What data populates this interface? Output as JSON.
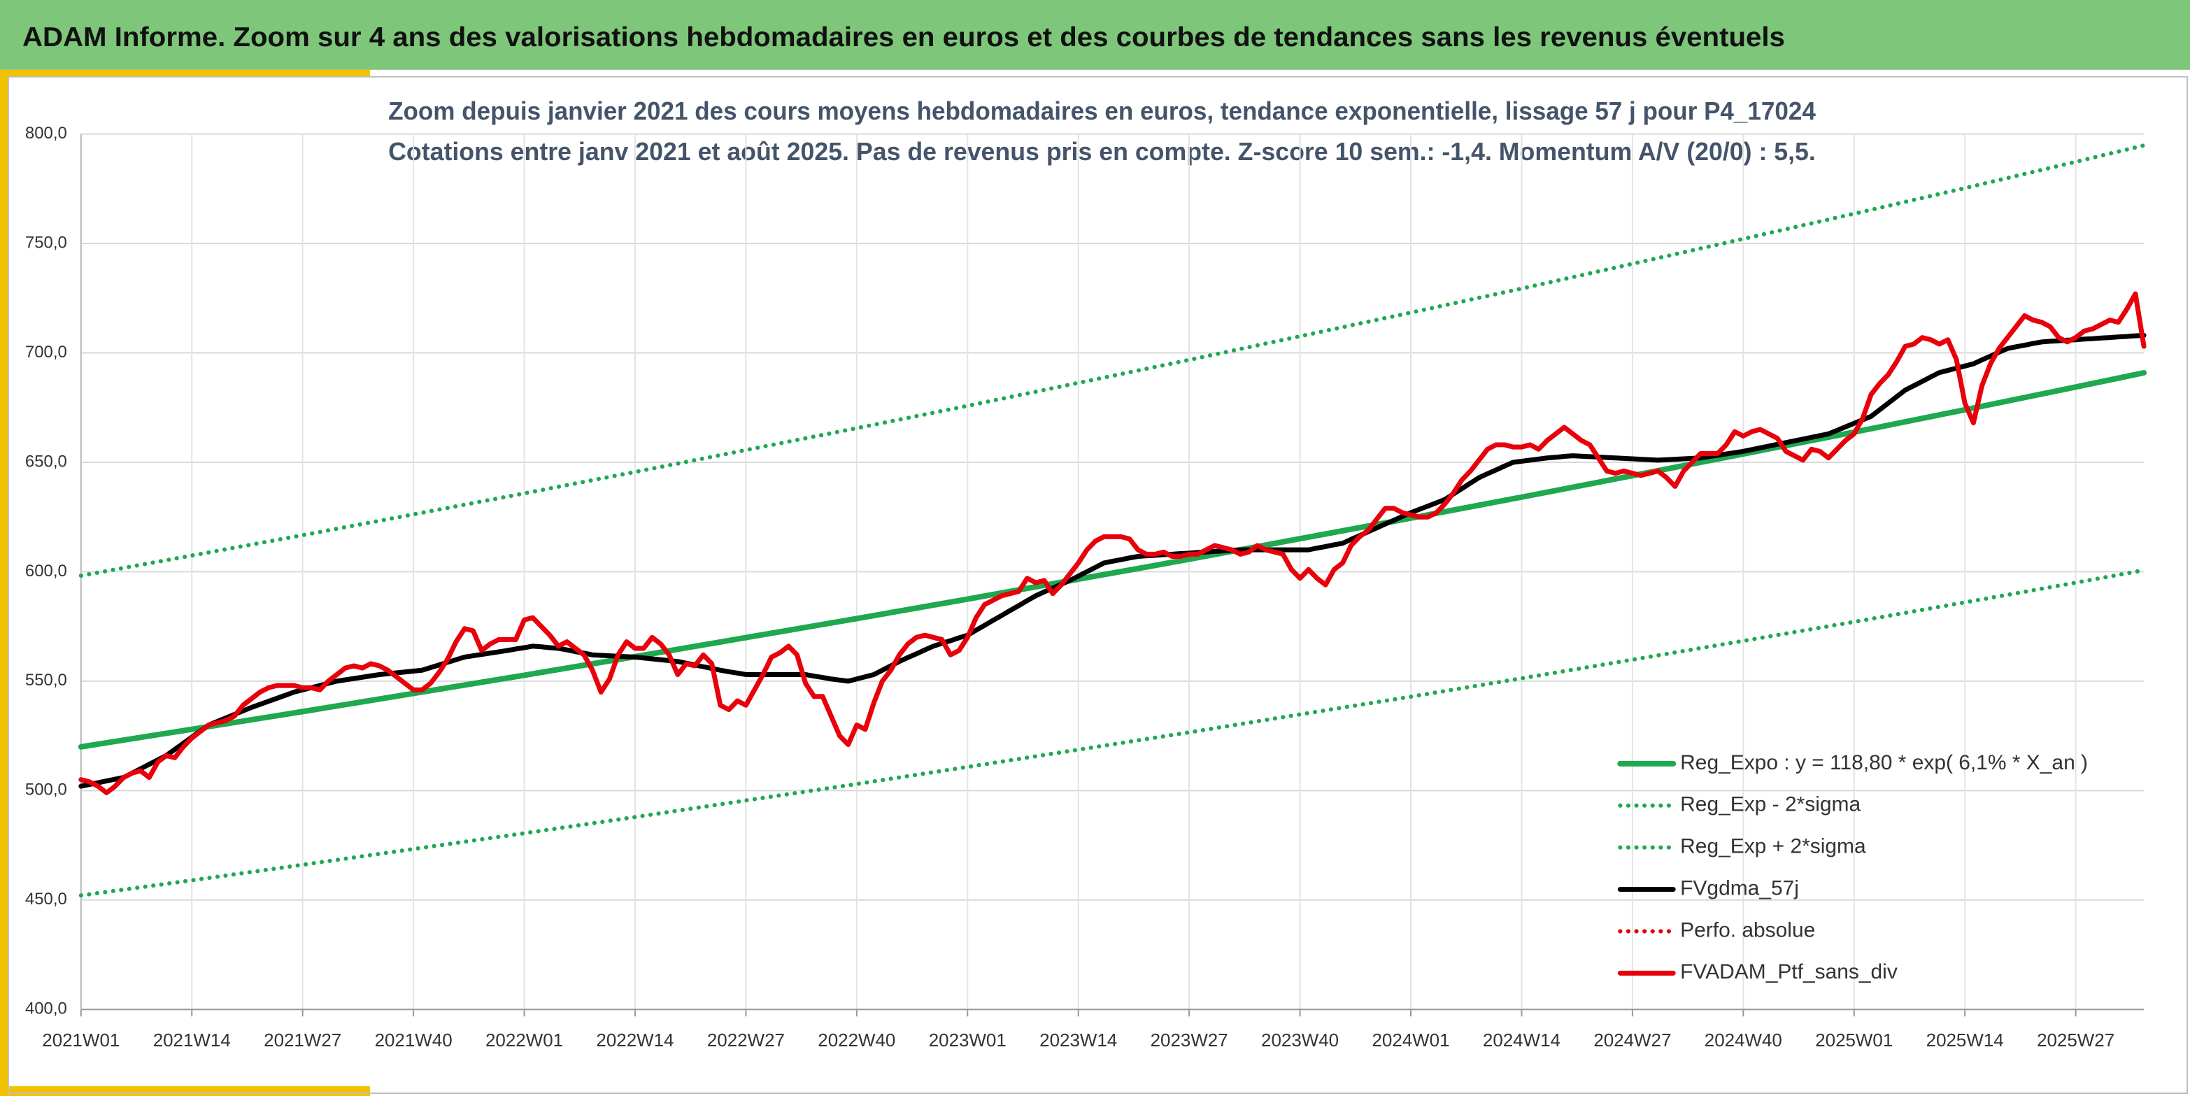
{
  "chart_data": {
    "type": "line",
    "title": "ADAM Informe. Zoom sur 4 ans des valorisations hebdomadaires en euros et des courbes de tendances sans les revenus éventuels",
    "subtitle": [
      "Zoom depuis janvier 2021 des cours moyens hebdomadaires en euros, tendance exponentielle, lissage 57 j pour P4_17024",
      "Cotations entre janv 2021 et août 2025. Pas de revenus pris en compte. Z-score 10 sem.: -1,4. Momentum A/V (20/0) : 5,5."
    ],
    "grid": true,
    "legend": "lower right",
    "xlim": [
      0,
      242
    ],
    "xticks": [
      {
        "value": 0,
        "label": "2021W01"
      },
      {
        "value": 13,
        "label": "2021W14"
      },
      {
        "value": 26,
        "label": "2021W27"
      },
      {
        "value": 39,
        "label": "2021W40"
      },
      {
        "value": 52,
        "label": "2022W01"
      },
      {
        "value": 65,
        "label": "2022W14"
      },
      {
        "value": 78,
        "label": "2022W27"
      },
      {
        "value": 91,
        "label": "2022W40"
      },
      {
        "value": 104,
        "label": "2023W01"
      },
      {
        "value": 117,
        "label": "2023W14"
      },
      {
        "value": 130,
        "label": "2023W27"
      },
      {
        "value": 143,
        "label": "2023W40"
      },
      {
        "value": 156,
        "label": "2024W01"
      },
      {
        "value": 169,
        "label": "2024W14"
      },
      {
        "value": 182,
        "label": "2024W27"
      },
      {
        "value": 195,
        "label": "2024W40"
      },
      {
        "value": 208,
        "label": "2025W01"
      },
      {
        "value": 221,
        "label": "2025W14"
      },
      {
        "value": 234,
        "label": "2025W27"
      }
    ],
    "ylim": [
      400,
      800
    ],
    "yticks": [
      {
        "value": 400,
        "label": "400,0"
      },
      {
        "value": 450,
        "label": "450,0"
      },
      {
        "value": 500,
        "label": "500,0"
      },
      {
        "value": 550,
        "label": "550,0"
      },
      {
        "value": 600,
        "label": "600,0"
      },
      {
        "value": 650,
        "label": "650,0"
      },
      {
        "value": 700,
        "label": "700,0"
      },
      {
        "value": 750,
        "label": "750,0"
      },
      {
        "value": 800,
        "label": "800,0"
      }
    ],
    "x": [
      0,
      1,
      2,
      3,
      4,
      5,
      6,
      7,
      8,
      9,
      10,
      11,
      12,
      13,
      14,
      15,
      16,
      17,
      18,
      19,
      20,
      21,
      22,
      23,
      24,
      25,
      26,
      27,
      28,
      29,
      30,
      31,
      32,
      33,
      34,
      35,
      36,
      37,
      38,
      39,
      40,
      41,
      42,
      43,
      44,
      45,
      46,
      47,
      48,
      49,
      50,
      51,
      52,
      53,
      54,
      55,
      56,
      57,
      58,
      59,
      60,
      61,
      62,
      63,
      64,
      65,
      66,
      67,
      68,
      69,
      70,
      71,
      72,
      73,
      74,
      75,
      76,
      77,
      78,
      79,
      80,
      81,
      82,
      83,
      84,
      85,
      86,
      87,
      88,
      89,
      90,
      91,
      92,
      93,
      94,
      95,
      96,
      97,
      98,
      99,
      100,
      101,
      102,
      103,
      104,
      105,
      106,
      107,
      108,
      109,
      110,
      111,
      112,
      113,
      114,
      115,
      116,
      117,
      118,
      119,
      120,
      121,
      122,
      123,
      124,
      125,
      126,
      127,
      128,
      129,
      130,
      131,
      132,
      133,
      134,
      135,
      136,
      137,
      138,
      139,
      140,
      141,
      142,
      143,
      144,
      145,
      146,
      147,
      148,
      149,
      150,
      151,
      152,
      153,
      154,
      155,
      156,
      157,
      158,
      159,
      160,
      161,
      162,
      163,
      164,
      165,
      166,
      167,
      168,
      169,
      170,
      171,
      172,
      173,
      174,
      175,
      176,
      177,
      178,
      179,
      180,
      181,
      182,
      183,
      184,
      185,
      186,
      187,
      188,
      189,
      190,
      191,
      192,
      193,
      194,
      195,
      196,
      197,
      198,
      199,
      200,
      201,
      202,
      203,
      204,
      205,
      206,
      207,
      208,
      209,
      210,
      211,
      212,
      213,
      214,
      215,
      216,
      217,
      218,
      219,
      220,
      221,
      222,
      223,
      224,
      225,
      226,
      227,
      228,
      229,
      230,
      231,
      232,
      233,
      234,
      235,
      236,
      237,
      238,
      239,
      240,
      241,
      242
    ],
    "series": [
      {
        "name": "Reg_Expo : y = 118,80 * exp( 6,1% *  X_an )",
        "color": "#1fa84f",
        "style": "solid",
        "width": 4,
        "x": [
          0,
          13,
          26,
          39,
          52,
          65,
          78,
          91,
          104,
          117,
          130,
          143,
          156,
          169,
          182,
          195,
          208,
          221,
          234,
          242
        ],
        "values": [
          520,
          528,
          536.1,
          544.4,
          552.7,
          561.2,
          569.9,
          578.6,
          587.5,
          596.6,
          605.7,
          615.1,
          624.5,
          634.1,
          643.9,
          653.8,
          663.8,
          674,
          684.4,
          690.9
        ]
      },
      {
        "name": "Reg_Exp - 2*sigma",
        "color": "#1fa84f",
        "style": "dotted",
        "width": 3,
        "x": [
          0,
          13,
          26,
          39,
          52,
          65,
          78,
          91,
          104,
          117,
          130,
          143,
          156,
          169,
          182,
          195,
          208,
          221,
          234,
          242
        ],
        "values": [
          452.1,
          459.0,
          466.1,
          473.3,
          480.5,
          487.9,
          495.5,
          503.0,
          510.8,
          518.7,
          526.6,
          534.8,
          542.9,
          551.3,
          559.8,
          568.4,
          577.1,
          586.0,
          595.0,
          600.7
        ]
      },
      {
        "name": "Reg_Exp + 2*sigma",
        "color": "#1fa84f",
        "style": "dotted",
        "width": 3,
        "x": [
          0,
          13,
          26,
          39,
          52,
          65,
          78,
          91,
          104,
          117,
          130,
          143,
          156,
          169,
          182,
          195,
          208,
          221,
          234,
          242
        ],
        "values": [
          598.2,
          607.4,
          616.7,
          626.2,
          635.8,
          645.6,
          655.6,
          665.6,
          675.8,
          686.3,
          696.8,
          707.6,
          718.4,
          729.4,
          740.7,
          752.1,
          763.6,
          775.3,
          787.3,
          794.8
        ]
      },
      {
        "name": "FVgdma_57j",
        "color": "#000000",
        "style": "solid",
        "width": 3.5,
        "values": [
          502,
          502.8,
          503.6,
          504.4,
          505.2,
          506,
          508,
          510,
          512,
          514,
          516,
          518.8,
          521.6,
          524.4,
          527.2,
          530,
          531.6,
          533.2,
          534.8,
          536.4,
          538,
          539.4,
          540.8,
          542.2,
          543.6,
          545,
          546,
          547,
          548,
          549,
          550,
          550.6,
          551.2,
          551.8,
          552.4,
          553,
          553.4,
          553.8,
          554.2,
          554.6,
          555,
          556.2,
          557.4,
          558.6,
          559.8,
          561,
          561.6,
          562.2,
          562.8,
          563.4,
          564,
          564.7,
          565.3,
          566,
          565.7,
          565.3,
          565,
          564.3,
          563.5,
          562.8,
          562,
          561.8,
          561.6,
          561.4,
          561.2,
          561,
          560.6,
          560.2,
          559.8,
          559.4,
          559,
          558.2,
          557.4,
          556.6,
          555.8,
          555,
          554.3,
          553.7,
          553,
          553,
          553,
          553,
          553,
          553,
          553,
          553,
          552.3,
          551.7,
          551,
          550.5,
          550,
          551,
          552,
          553,
          555,
          557,
          559,
          560.8,
          562.5,
          564.3,
          566,
          567.3,
          568.5,
          569.8,
          571,
          573.3,
          575.5,
          577.8,
          580,
          582.3,
          584.5,
          586.8,
          589,
          590.8,
          592.5,
          594.3,
          596,
          598,
          600,
          602,
          604,
          604.8,
          605.5,
          606.3,
          607,
          607.3,
          607.5,
          607.8,
          608,
          608.3,
          608.5,
          608.8,
          609,
          609.3,
          609.5,
          609.8,
          610,
          610,
          610,
          610,
          610,
          610,
          610,
          610,
          610,
          610.8,
          611.5,
          612.3,
          613,
          614.8,
          616.5,
          618.3,
          620,
          621.8,
          623.5,
          625.3,
          627,
          628.5,
          630,
          631.5,
          633,
          635.5,
          638,
          640.5,
          643,
          644.8,
          646.5,
          648.3,
          650,
          650.5,
          651,
          651.5,
          652,
          652.3,
          652.7,
          653,
          652.8,
          652.6,
          652.4,
          652.2,
          652,
          651.8,
          651.6,
          651.4,
          651.2,
          651,
          651.2,
          651.4,
          651.6,
          651.8,
          652,
          652.6,
          653.2,
          653.8,
          654.4,
          655,
          655.8,
          656.6,
          657.4,
          658.2,
          659,
          659.8,
          660.6,
          661.4,
          662.2,
          663,
          664.6,
          666.2,
          667.8,
          669.4,
          671,
          674,
          677,
          680,
          683,
          685,
          687,
          689,
          691,
          692,
          693,
          694,
          695,
          696.8,
          698.5,
          700.3,
          702,
          702.8,
          703.5,
          704.3,
          705,
          705.3,
          705.5,
          705.8,
          706,
          706.3,
          706.5,
          706.8,
          707,
          707.3,
          707.5,
          707.8,
          708
        ]
      },
      {
        "name": "Perfo. absolue",
        "color": "#e00000",
        "style": "dotted",
        "width": 3,
        "x": [],
        "values": []
      },
      {
        "name": "FVADAM_Ptf_sans_div",
        "color": "#e8000b",
        "style": "solid",
        "width": 3.5,
        "values": [
          505,
          504,
          502,
          499,
          502,
          506,
          508,
          509,
          506,
          513,
          516,
          515,
          520,
          524,
          527,
          530,
          531,
          532,
          534,
          539,
          542,
          545,
          547,
          548,
          548,
          548,
          547,
          547,
          546,
          550,
          553,
          556,
          557,
          556,
          558,
          557,
          555,
          552,
          549,
          546,
          546,
          549,
          554,
          560,
          568,
          574,
          573,
          564,
          567,
          569,
          569,
          569,
          578,
          579,
          575,
          571,
          566,
          568,
          565,
          562,
          555,
          545,
          551,
          562,
          568,
          565,
          565,
          570,
          567,
          562,
          553,
          558,
          557,
          562,
          558,
          539,
          537,
          541,
          539,
          546,
          553,
          561,
          563,
          566,
          562,
          549,
          543,
          543,
          534,
          525,
          521,
          530,
          528,
          540,
          550,
          555,
          562,
          567,
          570,
          571,
          570,
          569,
          562,
          564,
          570,
          579,
          585,
          587,
          589,
          590,
          591,
          597,
          595,
          596,
          590,
          594,
          599,
          604,
          610,
          614,
          616,
          616,
          616,
          615,
          610,
          608,
          608,
          609,
          607,
          607,
          608,
          608,
          610,
          612,
          611,
          610,
          608,
          609,
          612,
          610,
          609,
          608,
          601,
          597,
          601,
          597,
          594,
          601,
          604,
          612,
          616,
          619,
          624,
          629,
          629,
          627,
          626,
          625,
          625,
          627,
          631,
          636,
          642,
          646,
          651,
          656,
          658,
          658,
          657,
          657,
          658,
          656,
          660,
          663,
          666,
          663,
          660,
          658,
          652,
          646,
          645,
          646,
          645,
          644,
          645,
          646,
          643,
          639,
          646,
          650,
          654,
          654,
          654,
          658,
          664,
          662,
          664,
          665,
          663,
          661,
          655,
          653,
          651,
          656,
          655,
          652,
          656,
          660,
          663,
          670,
          681,
          686,
          690,
          696,
          703,
          704,
          707,
          706,
          704,
          706,
          697,
          677,
          668,
          685,
          695,
          702,
          707,
          712,
          717,
          715,
          714,
          712,
          707,
          705,
          707,
          710,
          711,
          713,
          715,
          714,
          720,
          727,
          703
        ]
      }
    ]
  }
}
